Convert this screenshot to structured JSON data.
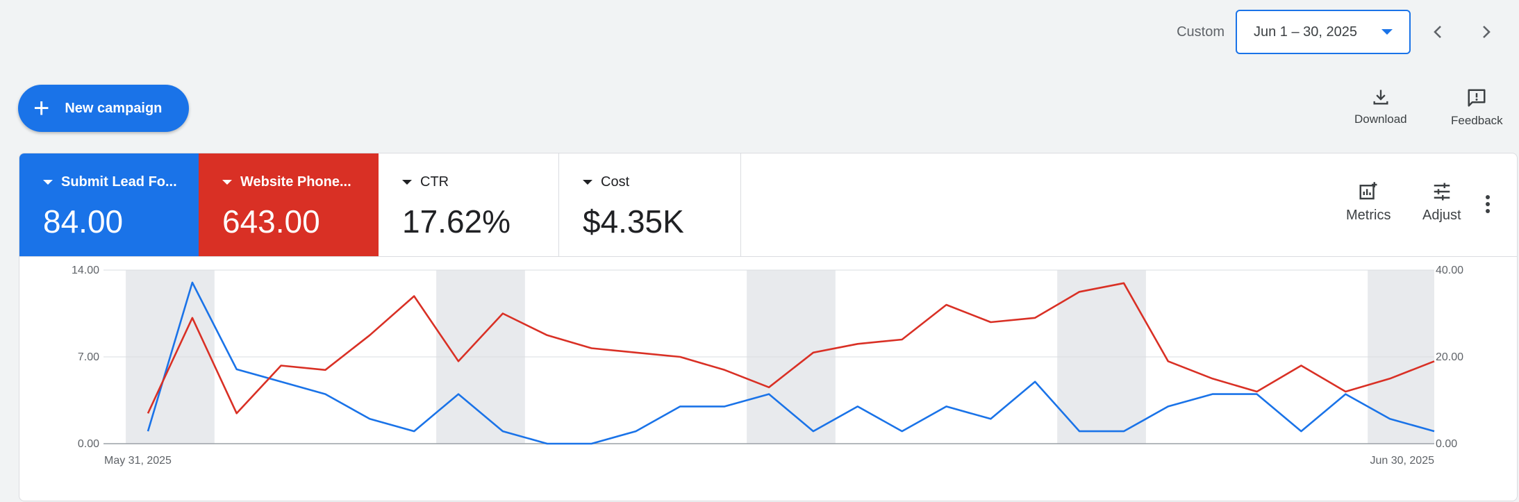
{
  "header": {
    "custom_label": "Custom",
    "date_range": "Jun 1 – 30, 2025"
  },
  "new_campaign_label": "New campaign",
  "actions": {
    "download": "Download",
    "feedback": "Feedback"
  },
  "scorecards": [
    {
      "label": "Submit Lead Fo...",
      "value": "84.00",
      "color": "#1a73e8"
    },
    {
      "label": "Website Phone...",
      "value": "643.00",
      "color": "#d93025"
    },
    {
      "label": "CTR",
      "value": "17.62%"
    },
    {
      "label": "Cost",
      "value": "$4.35K"
    }
  ],
  "card_tools": {
    "metrics": "Metrics",
    "adjust": "Adjust"
  },
  "chart_data": {
    "type": "line",
    "x_labels": {
      "start": "May 31, 2025",
      "end": "Jun 30, 2025"
    },
    "y_left": {
      "ticks": [
        "14.00",
        "7.00",
        "0.00"
      ],
      "min": 0,
      "max": 14
    },
    "y_right": {
      "ticks": [
        "40.00",
        "20.00",
        "0.00"
      ],
      "min": 0,
      "max": 40
    },
    "weekend_bands": [
      [
        0,
        1
      ],
      [
        7,
        8
      ],
      [
        14,
        15
      ],
      [
        21,
        22
      ],
      [
        28,
        29
      ]
    ],
    "series": [
      {
        "axis": "left",
        "color": "#1a73e8",
        "values": [
          1,
          13,
          6,
          5,
          4,
          2,
          1,
          4,
          1,
          0,
          0,
          1,
          3,
          3,
          4,
          1,
          3,
          1,
          3,
          2,
          5,
          1,
          1,
          3,
          4,
          4,
          1,
          4,
          2,
          1
        ]
      },
      {
        "axis": "right",
        "color": "#d93025",
        "values": [
          7,
          29,
          7,
          18,
          17,
          25,
          34,
          19,
          30,
          25,
          22,
          21,
          20,
          17,
          13,
          21,
          23,
          24,
          32,
          28,
          29,
          35,
          37,
          19,
          15,
          12,
          18,
          12,
          15,
          19
        ]
      }
    ]
  }
}
